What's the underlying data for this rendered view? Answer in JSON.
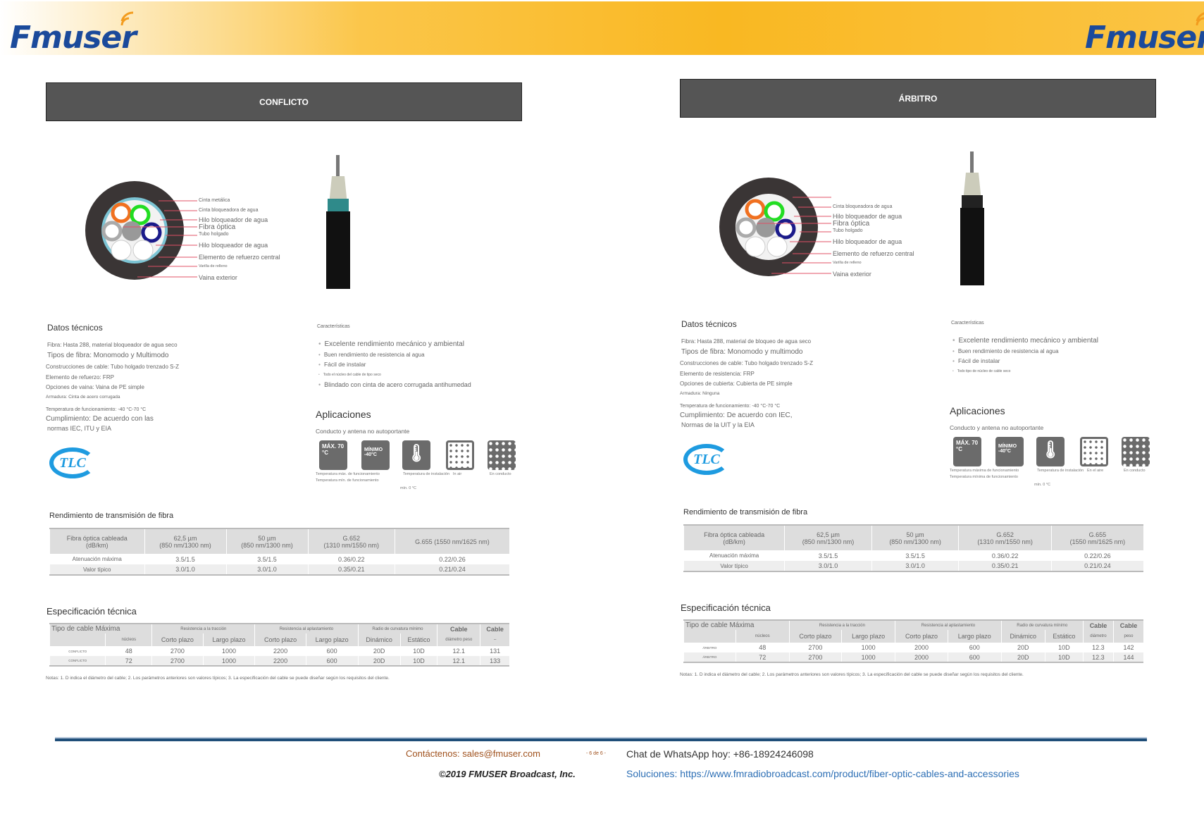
{
  "header": {
    "logo_text": "Fmuser",
    "brand_blue": "#1b4a9b",
    "accent": "#f9b822"
  },
  "pages": [
    {
      "title": "CONFLICTO",
      "diagram_labels": [
        "Cinta metálica",
        "Cinta bloqueadora de agua",
        "Hilo bloqueador de agua",
        "Fibra óptica",
        "Tubo holgado",
        "Hilo bloqueador de agua",
        "Elemento de refuerzo central",
        "Varilla de relleno",
        "Vaina exterior"
      ],
      "tech": {
        "heading": "Datos técnicos",
        "lines": [
          "Fibra: Hasta 288, material bloqueador de agua seco",
          "Tipos de fibra: Monomodo y Multimodo",
          "Construcciones de cable: Tubo holgado trenzado S-Z",
          "Elemento de refuerzo: FRP",
          "Opciones de vaina: Vaina de PE simple",
          "Armadura: Cinta de acero corrugada",
          "Temperatura de funcionamiento: -40 °C-70 °C",
          "Cumplimiento: De acuerdo con las",
          "normas IEC, ITU y EIA"
        ]
      },
      "features": {
        "heading": "Características",
        "items": [
          "Excelente rendimiento mecánico y ambiental",
          "Buen rendimiento de resistencia al agua",
          "Fácil de instalar",
          "Todo el núcleo del cable de tipo seco",
          "Blindado con cinta de acero corrugada antihumedad"
        ]
      },
      "apps": {
        "heading": "Aplicaciones",
        "sub": "Conducto y antena no autoportante",
        "icon1": "MÁX. 70 °C",
        "icon2": "MÍNIMO -40°C",
        "captions": [
          "Temperatura máx. de funcionamiento",
          "Temperatura mín. de funcionamiento",
          "Temperatura de instalación",
          "mín. 0 °C",
          "In air",
          "En conducto"
        ]
      },
      "cert_logo": "TLC",
      "perf": {
        "heading": "Rendimiento de transmisión de fibra",
        "headers": [
          [
            "Fibra óptica cableada",
            "(dB/km)"
          ],
          [
            "62,5 µm",
            "(850 nm/1300 nm)"
          ],
          [
            "50 µm",
            "(850 nm/1300 nm)"
          ],
          [
            "G.652",
            "(1310 nm/1550 nm)"
          ],
          [
            "G.655 (1550 nm/1625 nm)",
            ""
          ]
        ],
        "rows": [
          [
            "Atenuación máxima",
            "3.5/1.5",
            "3.5/1.5",
            "0.36/0.22",
            "0.22/0.26"
          ],
          [
            "Valor típico",
            "3.0/1.0",
            "3.0/1.0",
            "0.35/0.21",
            "0.21/0.24"
          ]
        ]
      },
      "spec": {
        "heading": "Especificación técnica",
        "h1": [
          "Tipo de cable Máxima",
          "Resistencia a la tracción",
          "Resistencia al aplastamiento",
          "Radio de curvatura mínimo",
          "Cable",
          "Cable"
        ],
        "h2": [
          "",
          "núcleos",
          "Corto plazo",
          "Largo plazo",
          "Corto plazo",
          "Largo plazo",
          "Dinámico",
          "Estático",
          "diámetro peso",
          "–"
        ],
        "rows": [
          [
            "CONFLICTO",
            "48",
            "2700",
            "1000",
            "2200",
            "600",
            "20D",
            "10D",
            "12.1",
            "131"
          ],
          [
            "CONFLICTO",
            "72",
            "2700",
            "1000",
            "2200",
            "600",
            "20D",
            "10D",
            "12.1",
            "133"
          ]
        ]
      },
      "notes": "Notas: 1. D indica el diámetro del cable; 2. Los parámetros anteriores son valores típicos; 3. La especificación del cable se puede diseñar según los requisitos del cliente."
    },
    {
      "title": "ÁRBITRO",
      "diagram_labels": [
        "",
        "Cinta bloqueadora de agua",
        "Hilo bloqueador de agua",
        "Fibra óptica",
        "Tubo holgado",
        "Hilo bloqueador de agua",
        "Elemento de refuerzo central",
        "Varilla de relleno",
        "Vaina exterior"
      ],
      "tech": {
        "heading": "Datos técnicos",
        "lines": [
          "Fibra: Hasta 288, material de bloqueo de agua seco",
          "Tipos de fibra: Monomodo y multimodo",
          "Construcciones de cable: Tubo holgado trenzado S-Z",
          "Elemento de resistencia: FRP",
          "Opciones de cubierta: Cubierta de PE simple",
          "Armadura: Ninguna",
          "Temperatura de funcionamiento: -40 °C-70 °C",
          "Cumplimiento: De acuerdo con IEC,",
          "Normas de la UIT y la EIA"
        ]
      },
      "features": {
        "heading": "Características",
        "items": [
          "Excelente rendimiento mecánico y ambiental",
          "Buen rendimiento de resistencia al agua",
          "Fácil de instalar",
          "Todo tipo de núcleo de cable seco",
          ""
        ]
      },
      "apps": {
        "heading": "Aplicaciones",
        "sub": "Conducto y antena no autoportante",
        "icon1": "MÁX. 70 °C",
        "icon2": "MÍNIMO -40°C",
        "captions": [
          "Temperatura máxima de funcionamiento",
          "Temperatura mínima de funcionamiento",
          "Temperatura de instalación",
          "mín. 0 °C",
          "En el aire",
          "En conducto"
        ]
      },
      "cert_logo": "TLC",
      "perf": {
        "heading": "Rendimiento de transmisión de fibra",
        "headers": [
          [
            "Fibra óptica cableada",
            "(dB/km)"
          ],
          [
            "62,5 µm",
            "(850 nm/1300 nm)"
          ],
          [
            "50 µm",
            "(850 nm/1300 nm)"
          ],
          [
            "G.652",
            "(1310 nm/1550 nm)"
          ],
          [
            "G.655",
            "(1550 nm/1625 nm)"
          ]
        ],
        "rows": [
          [
            "Atenuación máxima",
            "3.5/1.5",
            "3.5/1.5",
            "0.36/0.22",
            "0.22/0.26"
          ],
          [
            "Valor típico",
            "3.0/1.0",
            "3.0/1.0",
            "0.35/0.21",
            "0.21/0.24"
          ]
        ]
      },
      "spec": {
        "heading": "Especificación técnica",
        "h1": [
          "Tipo de cable Máxima",
          "Resistencia a la tracción",
          "Resistencia al aplastamiento",
          "Radio de curvatura mínimo",
          "Cable",
          "Cable"
        ],
        "h2": [
          "",
          "núcleos",
          "Corto plazo",
          "Largo plazo",
          "Corto plazo",
          "Largo plazo",
          "Dinámico",
          "Estático",
          "diámetro",
          "peso"
        ],
        "rows": [
          [
            "ÁRBITRO",
            "48",
            "2700",
            "1000",
            "2000",
            "600",
            "20D",
            "10D",
            "12.3",
            "142"
          ],
          [
            "ÁRBITRO",
            "72",
            "2700",
            "1000",
            "2000",
            "600",
            "20D",
            "10D",
            "12.3",
            "144"
          ]
        ]
      },
      "notes": "Notas: 1. D indica el diámetro del cable; 2. Los parámetros anteriores son valores típicos; 3. La especificación del cable se puede diseñar según los requisitos del cliente."
    }
  ],
  "footer": {
    "contact": "Contáctenos: sales@fmuser.com",
    "page": "- 6 de 6 -",
    "whatsapp": "Chat de WhatsApp hoy: +86-18924246098",
    "copyright": "©2019 FMUSER Broadcast, Inc.",
    "solutions": "Soluciones: https://www.fmradiobroadcast.com/product/fiber-optic-cables-and-accessories",
    "rule_color": "#1f4e79"
  }
}
